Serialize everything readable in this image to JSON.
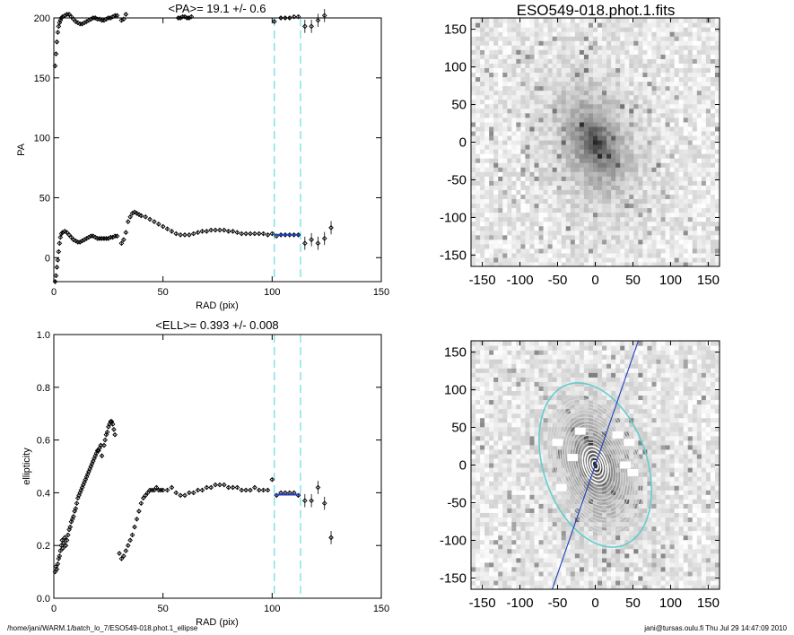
{
  "footer": {
    "path": "/home/jani/WARM.1/batch_lo_7/ESO549-018.phot.1_ellipse",
    "stamp": "jani@tursas.oulu.fi  Thu Jul 29 14:47:09 2010"
  },
  "colors": {
    "axis": "#000000",
    "points": "#000000",
    "fit": "#1f3fbf",
    "guide": "#66dddd",
    "contour": "#dddddd",
    "outer_ellipse": "#66cccc",
    "pa_line": "#1f3fbf"
  },
  "chart_data": [
    {
      "type": "scatter",
      "title": "<PA>=  19.1 +/-   0.6",
      "xlabel": "RAD (pix)",
      "ylabel": "PA",
      "xlim": [
        0,
        150
      ],
      "ylim": [
        -20,
        200
      ],
      "xticks": [
        "0",
        "50",
        "100",
        "150"
      ],
      "yticks": [
        "0",
        "50",
        "100",
        "150",
        "200"
      ],
      "guides_x": [
        101,
        113
      ],
      "fit": {
        "x": [
          101,
          113
        ],
        "y": 19.1
      },
      "series": [
        {
          "points": [
            [
              0.6,
              160
            ],
            [
              1.0,
              170
            ],
            [
              1.4,
              180
            ],
            [
              1.8,
              188
            ],
            [
              2.2,
              193
            ],
            [
              2.6,
              196
            ],
            [
              3,
              198
            ],
            [
              3.5,
              200
            ],
            [
              4,
              201
            ],
            [
              5,
              202
            ],
            [
              6,
              203
            ],
            [
              7,
              203
            ],
            [
              8,
              201
            ],
            [
              9,
              199
            ],
            [
              10,
              197
            ],
            [
              11,
              196
            ],
            [
              12,
              195
            ],
            [
              13,
              195
            ],
            [
              14,
              196
            ],
            [
              15,
              197
            ],
            [
              16,
              198
            ],
            [
              17,
              199
            ],
            [
              18,
              200
            ],
            [
              19,
              200
            ],
            [
              20,
              199
            ],
            [
              21,
              199
            ],
            [
              22,
              198
            ],
            [
              23,
              198
            ],
            [
              24,
              199
            ],
            [
              25,
              200
            ],
            [
              26,
              200
            ],
            [
              27,
              201
            ],
            [
              28,
              202
            ],
            [
              29,
              202
            ]
          ]
        },
        {
          "points": [
            [
              0.6,
              -20
            ],
            [
              1.0,
              -15
            ],
            [
              1.4,
              -8
            ],
            [
              1.8,
              -2
            ],
            [
              2.2,
              5
            ],
            [
              2.6,
              12
            ],
            [
              3,
              17
            ],
            [
              3.5,
              20
            ],
            [
              4,
              21
            ],
            [
              5,
              22
            ],
            [
              6,
              21
            ],
            [
              7,
              19
            ],
            [
              8,
              17
            ],
            [
              9,
              15
            ],
            [
              10,
              14
            ],
            [
              11,
              13
            ],
            [
              12,
              13
            ],
            [
              13,
              14
            ],
            [
              14,
              15
            ],
            [
              15,
              16
            ],
            [
              16,
              17
            ],
            [
              17,
              18
            ],
            [
              18,
              18
            ],
            [
              19,
              17
            ],
            [
              20,
              16
            ],
            [
              21,
              16
            ],
            [
              22,
              16
            ],
            [
              23,
              16
            ],
            [
              24,
              16
            ],
            [
              25,
              16
            ],
            [
              26,
              17
            ],
            [
              27,
              17
            ],
            [
              28,
              18
            ],
            [
              29,
              18
            ]
          ]
        },
        {
          "points": [
            [
              31,
              12
            ],
            [
              32,
              15
            ],
            [
              33,
              21
            ],
            [
              34,
              30
            ],
            [
              35,
              34
            ],
            [
              36,
              37
            ],
            [
              37,
              38
            ],
            [
              38,
              37
            ],
            [
              39,
              36
            ],
            [
              40,
              35
            ],
            [
              42,
              34
            ],
            [
              44,
              32
            ],
            [
              46,
              30
            ],
            [
              48,
              28
            ],
            [
              50,
              26
            ],
            [
              52,
              24
            ],
            [
              54,
              22
            ],
            [
              56,
              20
            ],
            [
              58,
              19
            ],
            [
              60,
              19
            ],
            [
              62,
              19
            ],
            [
              64,
              20
            ],
            [
              66,
              21
            ],
            [
              68,
              22
            ],
            [
              70,
              22
            ],
            [
              72,
              23
            ],
            [
              74,
              23
            ],
            [
              76,
              23
            ],
            [
              78,
              23
            ],
            [
              80,
              22
            ],
            [
              82,
              22
            ],
            [
              84,
              21
            ],
            [
              86,
              20
            ],
            [
              88,
              20
            ],
            [
              90,
              20
            ],
            [
              92,
              20
            ],
            [
              94,
              20
            ],
            [
              96,
              20
            ],
            [
              98,
              19
            ],
            [
              100,
              20
            ],
            [
              102,
              18
            ],
            [
              104,
              19
            ],
            [
              106,
              19
            ],
            [
              108,
              19
            ],
            [
              110,
              19
            ],
            [
              112,
              19
            ],
            [
              115,
              12
            ],
            [
              118,
              15
            ],
            [
              121,
              12
            ],
            [
              124,
              16
            ],
            [
              127,
              25
            ]
          ]
        },
        {
          "points": [
            [
              31,
              198
            ],
            [
              32,
              199
            ],
            [
              33,
              203
            ],
            [
              57,
              200
            ],
            [
              58,
              200
            ],
            [
              59,
              201
            ],
            [
              60,
              201
            ],
            [
              61,
              200
            ],
            [
              62,
              200
            ],
            [
              63,
              201
            ],
            [
              101,
              197
            ],
            [
              104,
              200
            ],
            [
              106,
              200
            ],
            [
              108,
              200
            ],
            [
              110,
              201
            ],
            [
              112,
              201
            ],
            [
              115,
              193
            ],
            [
              118,
              193
            ],
            [
              121,
              198
            ],
            [
              124,
              202
            ]
          ]
        }
      ]
    },
    {
      "type": "scatter",
      "title": "<ELL>= 0.393 +/-  0.008",
      "xlabel": "RAD (pix)",
      "ylabel": "ellipticity",
      "xlim": [
        0,
        150
      ],
      "ylim": [
        0,
        1
      ],
      "xticks": [
        "0",
        "50",
        "100",
        "150"
      ],
      "yticks": [
        "0.0",
        "0.2",
        "0.4",
        "0.6",
        "0.8",
        "1.0"
      ],
      "guides_x": [
        101,
        113
      ],
      "fit": {
        "x": [
          101,
          113
        ],
        "y": 0.393
      },
      "series": [
        {
          "points": [
            [
              0.6,
              0.1
            ],
            [
              1,
              0.12
            ],
            [
              1.4,
              0.11
            ],
            [
              1.8,
              0.13
            ],
            [
              2.2,
              0.15
            ],
            [
              2.6,
              0.16
            ],
            [
              3,
              0.18
            ],
            [
              3.4,
              0.2
            ],
            [
              3.8,
              0.22
            ],
            [
              4.2,
              0.19
            ],
            [
              4.6,
              0.21
            ],
            [
              5,
              0.23
            ],
            [
              5.5,
              0.2
            ],
            [
              6,
              0.22
            ],
            [
              6.5,
              0.24
            ],
            [
              7,
              0.26
            ],
            [
              7.5,
              0.27
            ],
            [
              8,
              0.29
            ],
            [
              8.5,
              0.3
            ],
            [
              9,
              0.31
            ],
            [
              9.5,
              0.33
            ],
            [
              10,
              0.34
            ],
            [
              10.5,
              0.36
            ],
            [
              11,
              0.38
            ],
            [
              11.5,
              0.39
            ],
            [
              12,
              0.4
            ],
            [
              12.5,
              0.41
            ],
            [
              13,
              0.42
            ],
            [
              13.5,
              0.43
            ],
            [
              14,
              0.44
            ],
            [
              14.5,
              0.45
            ],
            [
              15,
              0.46
            ],
            [
              15.5,
              0.47
            ],
            [
              16,
              0.48
            ],
            [
              16.5,
              0.49
            ],
            [
              17,
              0.5
            ],
            [
              17.5,
              0.51
            ],
            [
              18,
              0.52
            ],
            [
              18.5,
              0.53
            ],
            [
              19,
              0.54
            ],
            [
              19.5,
              0.55
            ],
            [
              20,
              0.56
            ],
            [
              20.5,
              0.56
            ],
            [
              21,
              0.57
            ],
            [
              21.5,
              0.58
            ],
            [
              22,
              0.54
            ],
            [
              23,
              0.58
            ],
            [
              23.5,
              0.6
            ],
            [
              24,
              0.62
            ],
            [
              24.5,
              0.63
            ],
            [
              25,
              0.65
            ],
            [
              25.5,
              0.66
            ],
            [
              26,
              0.67
            ],
            [
              26.5,
              0.67
            ],
            [
              27,
              0.66
            ],
            [
              27.5,
              0.64
            ],
            [
              28,
              0.62
            ]
          ]
        },
        {
          "points": [
            [
              30,
              0.17
            ],
            [
              31,
              0.15
            ],
            [
              32,
              0.16
            ],
            [
              33,
              0.18
            ],
            [
              34,
              0.2
            ],
            [
              35,
              0.22
            ],
            [
              36,
              0.24
            ],
            [
              37,
              0.27
            ],
            [
              38,
              0.3
            ],
            [
              39,
              0.33
            ],
            [
              40,
              0.36
            ],
            [
              41,
              0.38
            ],
            [
              42,
              0.39
            ],
            [
              43,
              0.4
            ],
            [
              44,
              0.41
            ],
            [
              45,
              0.41
            ],
            [
              46,
              0.41
            ],
            [
              47,
              0.42
            ],
            [
              48,
              0.41
            ],
            [
              49,
              0.41
            ],
            [
              50,
              0.41
            ],
            [
              52,
              0.41
            ],
            [
              54,
              0.42
            ],
            [
              56,
              0.4
            ],
            [
              58,
              0.39
            ],
            [
              60,
              0.39
            ],
            [
              62,
              0.4
            ],
            [
              64,
              0.4
            ],
            [
              66,
              0.41
            ],
            [
              68,
              0.41
            ],
            [
              70,
              0.42
            ],
            [
              72,
              0.42
            ],
            [
              74,
              0.43
            ],
            [
              76,
              0.43
            ],
            [
              78,
              0.43
            ],
            [
              80,
              0.42
            ],
            [
              82,
              0.42
            ],
            [
              84,
              0.42
            ],
            [
              86,
              0.41
            ],
            [
              88,
              0.41
            ],
            [
              90,
              0.41
            ],
            [
              92,
              0.42
            ],
            [
              94,
              0.41
            ],
            [
              96,
              0.41
            ],
            [
              98,
              0.41
            ],
            [
              100,
              0.45
            ],
            [
              102,
              0.39
            ],
            [
              104,
              0.4
            ],
            [
              106,
              0.4
            ],
            [
              108,
              0.4
            ],
            [
              110,
              0.4
            ],
            [
              112,
              0.39
            ],
            [
              115,
              0.37
            ],
            [
              118,
              0.37
            ],
            [
              121,
              0.42
            ],
            [
              124,
              0.36
            ],
            [
              127,
              0.23
            ]
          ]
        }
      ]
    },
    {
      "type": "heatmap",
      "title": "ESO549-018.phot.1.fits",
      "xlim": [
        -165,
        165
      ],
      "ylim": [
        -165,
        165
      ],
      "xticks": [
        "-150",
        "-100",
        "-50",
        "0",
        "50",
        "100",
        "150"
      ],
      "yticks": [
        "-150",
        "-100",
        "-50",
        "0",
        "50",
        "100",
        "150"
      ],
      "galaxy": {
        "center": [
          0,
          0
        ],
        "semi_major": 70,
        "ellipticity": 0.393,
        "pa_deg": 19.1
      }
    },
    {
      "type": "heatmap",
      "title": "",
      "xlim": [
        -165,
        165
      ],
      "ylim": [
        -165,
        165
      ],
      "xticks": [
        "-150",
        "-100",
        "-50",
        "0",
        "50",
        "100",
        "150"
      ],
      "yticks": [
        "-150",
        "-100",
        "-50",
        "0",
        "50",
        "100",
        "150"
      ],
      "galaxy": {
        "center": [
          0,
          0
        ],
        "semi_major": 70,
        "ellipticity": 0.393,
        "pa_deg": 19.1
      },
      "outer_ellipse_sma": 113,
      "pa_line_deg": 19.1
    }
  ]
}
